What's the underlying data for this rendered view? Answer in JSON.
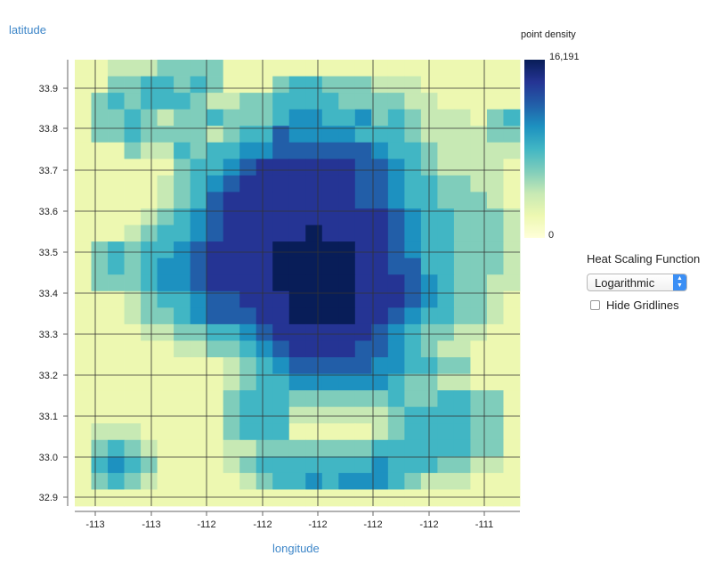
{
  "chart_data": {
    "type": "heatmap",
    "xlabel": "longitude",
    "ylabel": "latitude",
    "x_ticks": [
      "-113",
      "-113",
      "-112",
      "-112",
      "-112",
      "-112",
      "-112",
      "-111"
    ],
    "y_ticks": [
      "33.9",
      "33.8",
      "33.7",
      "33.6",
      "33.5",
      "33.4",
      "33.3",
      "33.2",
      "33.1",
      "33.0",
      "32.9"
    ],
    "xlim": [
      -113.2,
      -110.9
    ],
    "ylim": [
      32.88,
      33.98
    ],
    "colorbar": {
      "title": "point density",
      "min_label": "0",
      "max_label": "16,191",
      "min": 0,
      "max": 16191
    },
    "colorscale": [
      "#ffffd9",
      "#edf8b1",
      "#c7e9b4",
      "#7fcdbb",
      "#41b6c4",
      "#1d91c0",
      "#225ea8",
      "#253494",
      "#081d58"
    ],
    "grid": true,
    "scaling": "logarithmic",
    "grid_rows": 27,
    "grid_cols": 27,
    "level_rows": [
      "112223333111111111111111111",
      "113344343111344333222111111",
      "134344432233444433332211111",
      "133432334333455445343222134",
      "133433332344655554443222233",
      "111322434455666666544322222",
      "111111344567777776654322221",
      "111112345677777776654433221",
      "111112346777777776654433321",
      "111123456777777777765443332",
      "111234456777778777765443332",
      "134344567777888887765443332",
      "134345567777888887766443332",
      "133345567777888887776543322",
      "111234456677788887776543321",
      "111233456667788887765443321",
      "111122334456777777654332211",
      "111111223345677776654322111",
      "111111111234566666554433111",
      "111111111234455555543322111",
      "111111111344433333343344331",
      "111111111344422222234444331",
      "122211111344411111234444331",
      "134321111223333333444444331",
      "145431111234444444544433221",
      "134321111123445455543222111",
      "111111111111111111111111111"
    ]
  },
  "controls": {
    "heat_scaling_label": "Heat Scaling Function",
    "heat_scaling_value": "Logarithmic",
    "hide_gridlines_label": "Hide Gridlines",
    "hide_gridlines_checked": false
  }
}
